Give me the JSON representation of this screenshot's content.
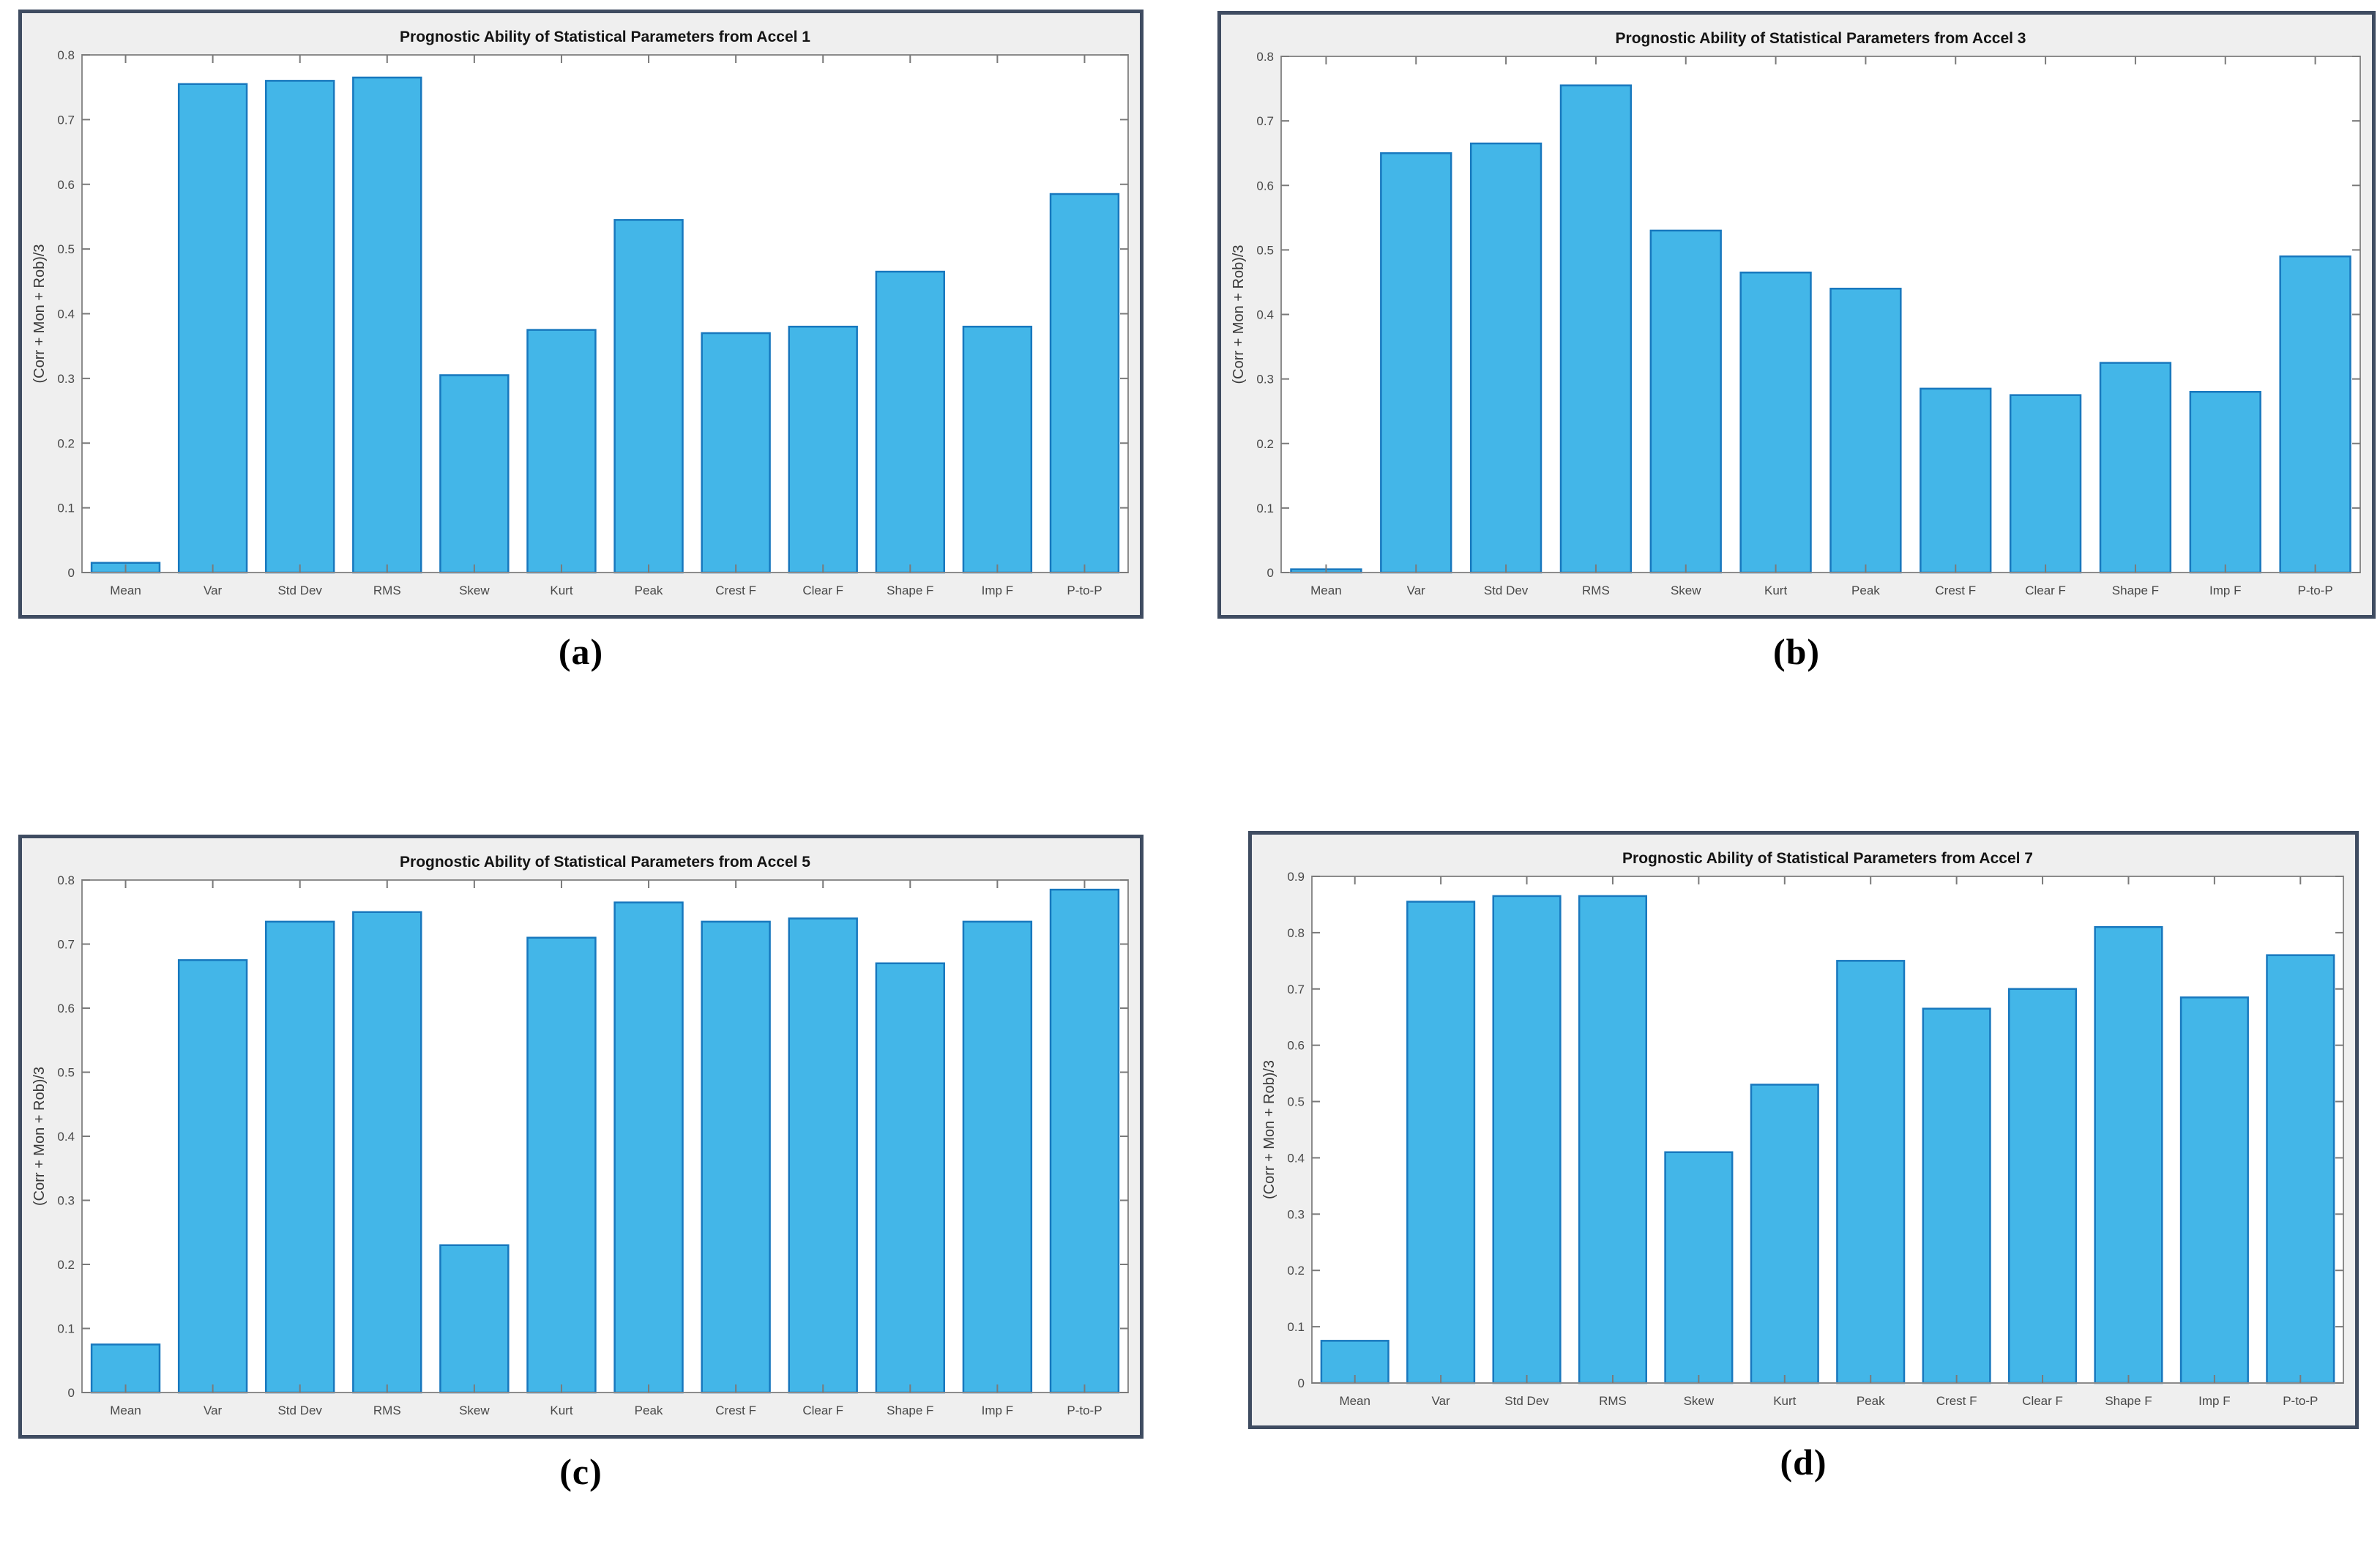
{
  "styles": {
    "bar_fill": "#43B6E8",
    "bar_edge": "#1878BE",
    "panel_border": "#3F4C61",
    "figure_bg": "#EFEFEF",
    "plot_bg": "#FFFFFF",
    "axis_color": "#8C8C8C",
    "tick_color": "#7A7A7A",
    "tick_label_color": "#494949",
    "title_color": "#141414",
    "ylabel_color": "#3A3A3A"
  },
  "captions": [
    "(a)",
    "(b)",
    "(c)",
    "(d)"
  ],
  "chart_data": [
    {
      "type": "bar",
      "title": "Prognostic Ability of Statistical Parameters from Accel 1",
      "xlabel": "",
      "ylabel": "(Corr + Mon + Rob)/3",
      "categories": [
        "Mean",
        "Var",
        "Std Dev",
        "RMS",
        "Skew",
        "Kurt",
        "Peak",
        "Crest F",
        "Clear F",
        "Shape F",
        "Imp F",
        "P-to-P"
      ],
      "values": [
        0.015,
        0.755,
        0.76,
        0.765,
        0.305,
        0.375,
        0.545,
        0.37,
        0.38,
        0.465,
        0.38,
        0.585
      ],
      "ylim": [
        0,
        0.8
      ],
      "ytick_step": 0.1,
      "grid": false,
      "legend": null
    },
    {
      "type": "bar",
      "title": "Prognostic Ability of Statistical Parameters from Accel 3",
      "xlabel": "",
      "ylabel": "(Corr + Mon + Rob)/3",
      "categories": [
        "Mean",
        "Var",
        "Std Dev",
        "RMS",
        "Skew",
        "Kurt",
        "Peak",
        "Crest F",
        "Clear F",
        "Shape F",
        "Imp F",
        "P-to-P"
      ],
      "values": [
        0.005,
        0.65,
        0.665,
        0.755,
        0.53,
        0.465,
        0.44,
        0.285,
        0.275,
        0.325,
        0.28,
        0.49
      ],
      "ylim": [
        0,
        0.8
      ],
      "ytick_step": 0.1,
      "grid": false,
      "legend": null
    },
    {
      "type": "bar",
      "title": "Prognostic Ability of Statistical Parameters from Accel 5",
      "xlabel": "",
      "ylabel": "(Corr + Mon + Rob)/3",
      "categories": [
        "Mean",
        "Var",
        "Std Dev",
        "RMS",
        "Skew",
        "Kurt",
        "Peak",
        "Crest F",
        "Clear F",
        "Shape F",
        "Imp F",
        "P-to-P"
      ],
      "values": [
        0.075,
        0.675,
        0.735,
        0.75,
        0.23,
        0.71,
        0.765,
        0.735,
        0.74,
        0.67,
        0.735,
        0.785
      ],
      "ylim": [
        0,
        0.8
      ],
      "ytick_step": 0.1,
      "grid": false,
      "legend": null
    },
    {
      "type": "bar",
      "title": "Prognostic Ability of Statistical Parameters from Accel 7",
      "xlabel": "",
      "ylabel": "(Corr + Mon + Rob)/3",
      "categories": [
        "Mean",
        "Var",
        "Std Dev",
        "RMS",
        "Skew",
        "Kurt",
        "Peak",
        "Crest F",
        "Clear F",
        "Shape F",
        "Imp F",
        "P-to-P"
      ],
      "values": [
        0.075,
        0.855,
        0.865,
        0.865,
        0.41,
        0.53,
        0.75,
        0.665,
        0.7,
        0.81,
        0.685,
        0.76
      ],
      "ylim": [
        0,
        0.9
      ],
      "ytick_step": 0.1,
      "grid": false,
      "legend": null
    }
  ]
}
